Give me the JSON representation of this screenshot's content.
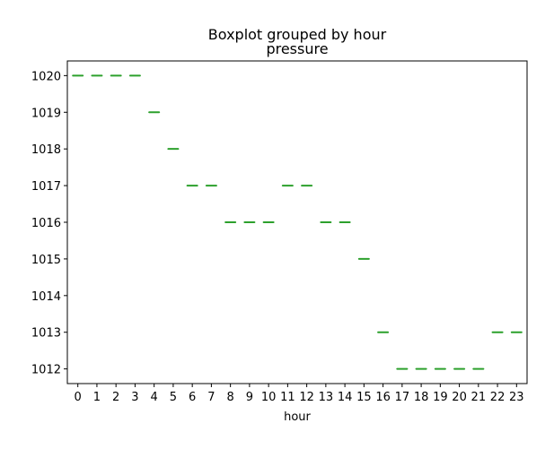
{
  "chart_data": {
    "type": "boxplot",
    "suptitle": "Boxplot grouped by hour",
    "title": "pressure",
    "xlabel": "hour",
    "ylabel": "",
    "categories": [
      "0",
      "1",
      "2",
      "3",
      "4",
      "5",
      "6",
      "7",
      "8",
      "9",
      "10",
      "11",
      "12",
      "13",
      "14",
      "15",
      "16",
      "17",
      "18",
      "19",
      "20",
      "21",
      "22",
      "23"
    ],
    "values": [
      1020,
      1020,
      1020,
      1020,
      1019,
      1018,
      1017,
      1017,
      1016,
      1016,
      1016,
      1017,
      1017,
      1016,
      1016,
      1015,
      1013,
      1012,
      1012,
      1012,
      1012,
      1012,
      1013,
      1013
    ],
    "yticks": [
      "1012",
      "1013",
      "1014",
      "1015",
      "1016",
      "1017",
      "1018",
      "1019",
      "1020"
    ],
    "ylim": [
      1011.6,
      1020.4
    ],
    "grid": false,
    "median_color": "#2ca02c",
    "box_color": "#1f77b4"
  }
}
